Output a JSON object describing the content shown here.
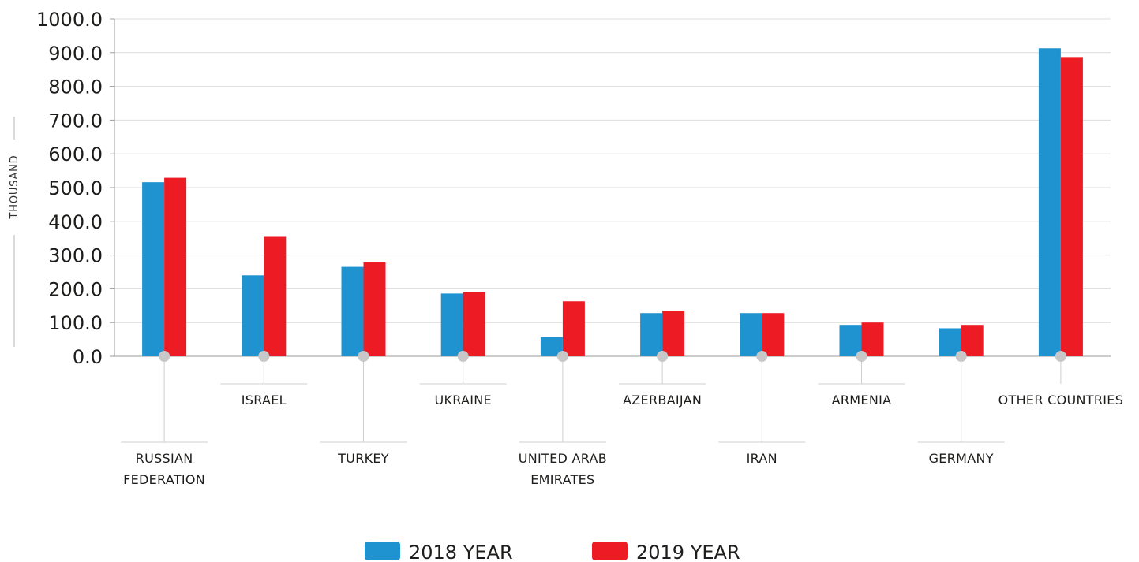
{
  "chart_data": {
    "type": "bar",
    "ylabel": "THOUSAND",
    "ylim": [
      0,
      1000
    ],
    "ytick_step": 100,
    "ytick_decimals": 1,
    "grid": true,
    "legend_position": "bottom-center",
    "categories": [
      [
        "RUSSIAN",
        "FEDERATION"
      ],
      [
        "ISRAEL"
      ],
      [
        "TURKEY"
      ],
      [
        "UKRAINE"
      ],
      [
        "UNITED ARAB",
        "EMIRATES"
      ],
      [
        "AZERBAIJAN"
      ],
      [
        "IRAN"
      ],
      [
        "ARMENIA"
      ],
      [
        "GERMANY"
      ],
      [
        "OTHER COUNTRIES"
      ]
    ],
    "series": [
      {
        "name": "2018 YEAR",
        "color": "#1f93d0",
        "values": [
          516,
          240,
          265,
          186,
          57,
          128,
          128,
          93,
          83,
          913
        ]
      },
      {
        "name": "2019 YEAR",
        "color": "#ed1c24",
        "values": [
          529,
          354,
          278,
          190,
          163,
          135,
          128,
          100,
          93,
          887
        ]
      }
    ]
  }
}
